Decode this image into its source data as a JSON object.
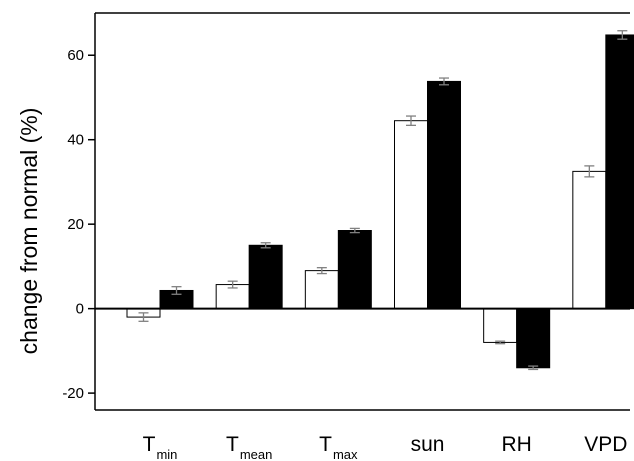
{
  "chart_data": {
    "type": "bar",
    "ylabel": "change from normal (%)",
    "ylim": [
      -24,
      70
    ],
    "yticks": [
      -20,
      0,
      20,
      40,
      60
    ],
    "categories": [
      {
        "main": "T",
        "sub": "min"
      },
      {
        "main": "T",
        "sub": "mean"
      },
      {
        "main": "T",
        "sub": "max"
      },
      {
        "main": "sun",
        "sub": ""
      },
      {
        "main": "RH",
        "sub": ""
      },
      {
        "main": "VPD",
        "sub": ""
      }
    ],
    "series": [
      {
        "values": [
          -2,
          5.7,
          9,
          44.5,
          -8,
          32.5
        ],
        "errors": [
          1,
          0.8,
          0.7,
          1.1,
          0.3,
          1.3
        ],
        "color": "#ffffff"
      },
      {
        "values": [
          4.3,
          15,
          18.5,
          53.8,
          -14,
          64.8
        ],
        "errors": [
          0.9,
          0.6,
          0.5,
          0.8,
          0.4,
          1.0
        ],
        "color": "#000000"
      }
    ],
    "grid": false,
    "legend": "none",
    "colors": {
      "frame": "#000000",
      "errorbar": "#808080"
    }
  }
}
